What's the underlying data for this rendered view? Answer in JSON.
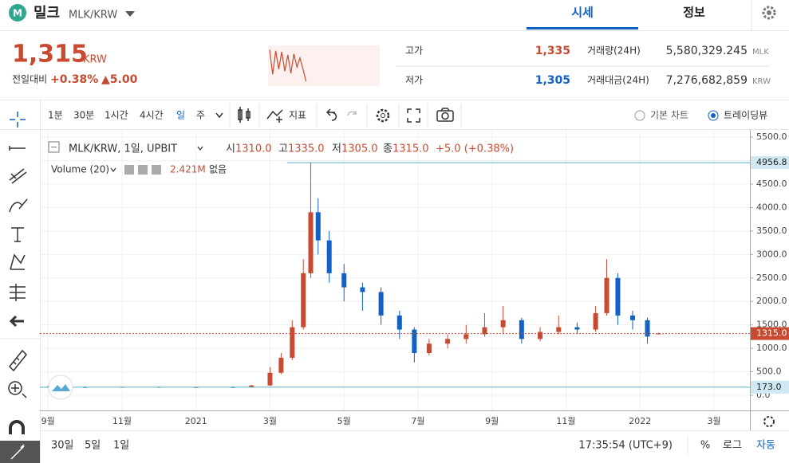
{
  "header": {
    "name": "밀크",
    "pair": "MLK/KRW",
    "tabs": [
      "시세",
      "정보"
    ]
  },
  "ticker": {
    "price": "1,315",
    "currency": "KRW",
    "change_label": "전일대비",
    "change_rate": "+0.38%",
    "change_amount": "▲5.00",
    "high_label": "고가",
    "high": "1,335",
    "low_label": "저가",
    "low": "1,305",
    "volume_label": "거래량(24H)",
    "volume": "5,580,329.245",
    "volume_unit": "MLK",
    "value_label": "거래대금(24H)",
    "value": "7,276,682,859",
    "value_unit": "KRW",
    "sparkline": {
      "values": [
        1338,
        1290,
        1336,
        1300,
        1334,
        1296,
        1328,
        1292,
        1330,
        1304,
        1322,
        1300,
        1276
      ],
      "ylim": [
        1270,
        1345
      ],
      "color": "#c84a31"
    }
  },
  "toolbar": {
    "intervals": [
      "1분",
      "30분",
      "1시간",
      "4시간",
      "일",
      "주"
    ],
    "indicators": "지표",
    "chart_modes": [
      "기본 차트",
      "트레이딩뷰"
    ]
  },
  "chart_data": {
    "type": "candlestick",
    "legend": {
      "symbol": "MLK/KRW, 1일, UPBIT",
      "ohlc": [
        {
          "label": "시",
          "value": "1310.0"
        },
        {
          "label": "고",
          "value": "1335.0"
        },
        {
          "label": "저",
          "value": "1305.0"
        },
        {
          "label": "종",
          "value": "1315.0"
        }
      ],
      "change": "+5.0 (+0.38%)"
    },
    "volume_legend": {
      "name": "Volume (20)",
      "value": "2.421M",
      "status": "없음"
    },
    "x": [
      1.0,
      2.0,
      3.0,
      4.0,
      5.0,
      6.0,
      6.5,
      7.0,
      7.3,
      7.6,
      7.9,
      8.1,
      8.3,
      8.6,
      9.0,
      9.5,
      10.0,
      10.5,
      10.9,
      11.3,
      11.8,
      12.3,
      12.8,
      13.3,
      13.8,
      14.3,
      14.8,
      15.3,
      15.8,
      16.1,
      16.4,
      16.8,
      17.2,
      17.5
    ],
    "open": [
      180,
      175,
      172,
      178,
      170,
      175,
      172,
      210,
      480,
      800,
      1450,
      2600,
      3900,
      3300,
      2600,
      2300,
      2200,
      1700,
      1400,
      900,
      1100,
      1200,
      1300,
      1450,
      1600,
      1200,
      1350,
      1450,
      1400,
      1750,
      2500,
      1700,
      1600,
      1310
    ],
    "high": [
      200,
      190,
      185,
      190,
      185,
      190,
      220,
      600,
      900,
      1600,
      2900,
      4956.8,
      4200,
      3500,
      2800,
      2400,
      2300,
      1800,
      1450,
      1200,
      1300,
      1500,
      1750,
      1900,
      1650,
      1450,
      1700,
      1550,
      1900,
      2900,
      2600,
      1800,
      1650,
      1335
    ],
    "low": [
      170,
      165,
      165,
      168,
      160,
      168,
      170,
      200,
      450,
      750,
      1400,
      2500,
      3000,
      2400,
      2000,
      1800,
      1500,
      1200,
      700,
      850,
      1000,
      1100,
      1250,
      1300,
      1100,
      1150,
      1300,
      1300,
      1350,
      1700,
      1500,
      1400,
      1100,
      1305
    ],
    "close": [
      175,
      172,
      178,
      170,
      175,
      172,
      210,
      480,
      800,
      1450,
      2600,
      3900,
      3300,
      2600,
      2300,
      2200,
      1700,
      1400,
      900,
      1100,
      1200,
      1300,
      1450,
      1600,
      1200,
      1350,
      1450,
      1400,
      1750,
      2500,
      1700,
      1600,
      1250,
      1315
    ],
    "up_color": "#c84a31",
    "down_color": "#1261c4",
    "xlim": [
      0.78,
      19.97
    ],
    "xticks": [
      {
        "value": 1,
        "label": "9월"
      },
      {
        "value": 3,
        "label": "11월"
      },
      {
        "value": 5,
        "label": "2021"
      },
      {
        "value": 7,
        "label": "3월"
      },
      {
        "value": 9,
        "label": "5월"
      },
      {
        "value": 11,
        "label": "7월"
      },
      {
        "value": 13,
        "label": "9월"
      },
      {
        "value": 15,
        "label": "11월"
      },
      {
        "value": 17,
        "label": "2022"
      },
      {
        "value": 19,
        "label": "3월"
      }
    ],
    "ylim": [
      -322,
      5620
    ],
    "yticks": [
      {
        "value": 0,
        "label": "0.0"
      },
      {
        "value": 500,
        "label": "500.0"
      },
      {
        "value": 1000,
        "label": "1000.0"
      },
      {
        "value": 1500,
        "label": "1500.0"
      },
      {
        "value": 2000,
        "label": "2000.0"
      },
      {
        "value": 2500,
        "label": "2500.0"
      },
      {
        "value": 3000,
        "label": "3000.0"
      },
      {
        "value": 3500,
        "label": "3500.0"
      },
      {
        "value": 4000,
        "label": "4000.0"
      },
      {
        "value": 4500,
        "label": "4500.0"
      },
      {
        "value": 5000,
        "label": "5000.0"
      },
      {
        "value": 5500,
        "label": "5500.0"
      }
    ],
    "price_lines": [
      {
        "value": 4956.8,
        "color": "#5bb0c8"
      },
      {
        "value": {
          "value": 1315,
          "label": "1315.0"
        },
        "color": "#c84a31"
      },
      {
        "value": {
          "value": 173,
          "label": "173.0"
        },
        "color": "#5bb0c8"
      }
    ],
    "grid": true
  },
  "footer": {
    "ranges": [
      "30일",
      "5일",
      "1일"
    ],
    "time": "17:35:54 (UTC+9)",
    "options": [
      "%",
      "로그",
      "자동"
    ]
  }
}
